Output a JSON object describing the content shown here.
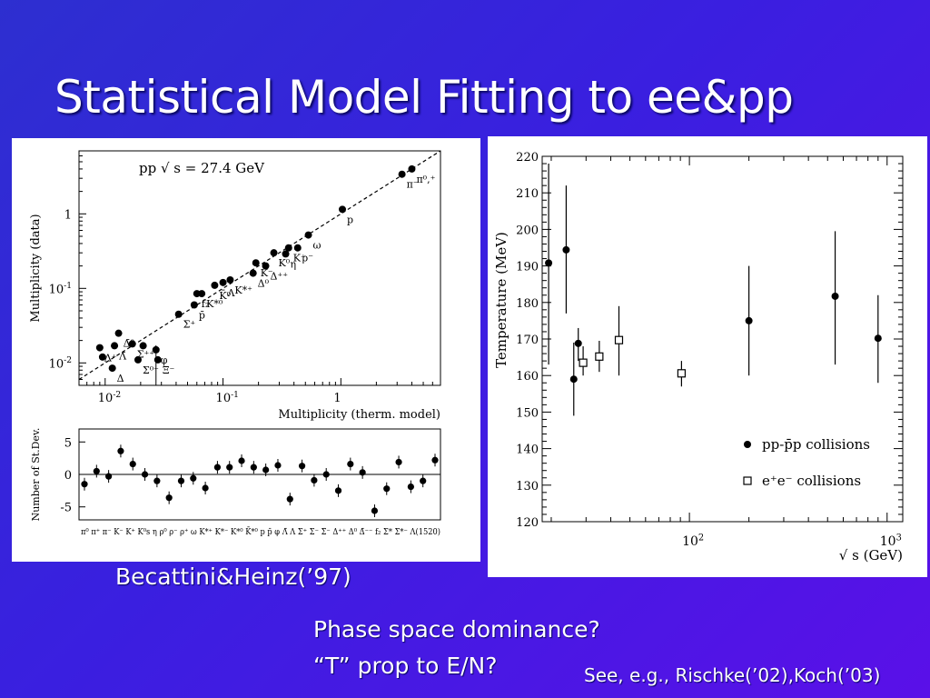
{
  "slide": {
    "title": "Statistical Model Fitting to ee&pp",
    "caption_left": "Becattini&Heinz(’97)",
    "bullets": [
      "Phase space dominance?",
      "“T” prop to E/N?"
    ],
    "footer": "See, e.g., Rischke(’02),Koch(’03)"
  },
  "chart_data": [
    {
      "type": "scatter",
      "title": "pp  √ s = 27.4 GeV",
      "xlabel": "Multiplicity (therm. model)",
      "ylabel": "Multiplicity (data)",
      "xscale": "log",
      "yscale": "log",
      "xlim": [
        0.006,
        7
      ],
      "ylim": [
        0.005,
        7
      ],
      "xticks": [
        {
          "v": 0.01,
          "label": "10",
          "exp": "-2"
        },
        {
          "v": 0.1,
          "label": "10",
          "exp": "-1"
        },
        {
          "v": 1,
          "label": "1",
          "exp": ""
        }
      ],
      "yticks": [
        {
          "v": 0.01,
          "label": "10",
          "exp": "-2"
        },
        {
          "v": 0.1,
          "label": "10",
          "exp": "-1"
        },
        {
          "v": 1,
          "label": "1",
          "exp": ""
        }
      ],
      "diagonal": "y = x (dashed)",
      "points": [
        {
          "x": 0.009,
          "y": 0.016,
          "label": "Λ⁺"
        },
        {
          "x": 0.0095,
          "y": 0.012,
          "label": ""
        },
        {
          "x": 0.0115,
          "y": 0.0085,
          "label": "Δ"
        },
        {
          "x": 0.012,
          "y": 0.017,
          "label": "Λ̄"
        },
        {
          "x": 0.013,
          "y": 0.025,
          "label": "Δ̄⁰"
        },
        {
          "x": 0.017,
          "y": 0.018,
          "label": "Σ⁺⁺"
        },
        {
          "x": 0.019,
          "y": 0.011,
          "label": "Σ⁰⁻"
        },
        {
          "x": 0.021,
          "y": 0.017,
          "label": ""
        },
        {
          "x": 0.027,
          "y": 0.015,
          "label": "φ"
        },
        {
          "x": 0.028,
          "y": 0.011,
          "label": "Ξ⁻"
        },
        {
          "x": 0.042,
          "y": 0.045,
          "label": "Σ⁺"
        },
        {
          "x": 0.057,
          "y": 0.06,
          "label": "p̄"
        },
        {
          "x": 0.06,
          "y": 0.085,
          "label": "f₂"
        },
        {
          "x": 0.066,
          "y": 0.085,
          "label": "K*⁰"
        },
        {
          "x": 0.085,
          "y": 0.11,
          "label": "K̄⁰"
        },
        {
          "x": 0.1,
          "y": 0.12,
          "label": "Λ"
        },
        {
          "x": 0.115,
          "y": 0.13,
          "label": "K*⁺"
        },
        {
          "x": 0.18,
          "y": 0.16,
          "label": "Δ⁰"
        },
        {
          "x": 0.19,
          "y": 0.22,
          "label": "K⁻"
        },
        {
          "x": 0.23,
          "y": 0.2,
          "label": "Δ⁺⁺"
        },
        {
          "x": 0.27,
          "y": 0.3,
          "label": "K⁰"
        },
        {
          "x": 0.34,
          "y": 0.29,
          "label": "η"
        },
        {
          "x": 0.36,
          "y": 0.35,
          "label": "K⁺"
        },
        {
          "x": 0.43,
          "y": 0.35,
          "label": "ρ⁻"
        },
        {
          "x": 0.53,
          "y": 0.52,
          "label": "ω"
        },
        {
          "x": 1.03,
          "y": 1.15,
          "label": "p"
        },
        {
          "x": 3.3,
          "y": 3.4,
          "label": "π⁻"
        },
        {
          "x": 4.0,
          "y": 4.0,
          "label": "π⁰,⁺"
        }
      ],
      "labels_text": {
        "p": "p",
        "pi_minus": "π",
        "pi_minus_sup": "-",
        "pi0": "π",
        "pi0_sup": "0,+",
        "rho_plus": "ρ",
        "rho_plus_sup": "+",
        "rho0": "ρ",
        "rho0_sup": "0",
        "omega": "ω",
        "K_plus": "K",
        "K_plus_sup": "+",
        "K0": "K",
        "K0_sup": "0",
        "K_minus": "K",
        "K_minus_sup": "-",
        "Lambda": "Λ",
        "eta": "η"
      }
    },
    {
      "type": "scatter",
      "ylabel": "Number of St.Dev.",
      "ylim": [
        -7,
        7
      ],
      "yticks": [
        {
          "v": 5,
          "label": "5"
        },
        {
          "v": 0,
          "label": "0"
        },
        {
          "v": -5,
          "label": "-5"
        }
      ],
      "categories_text": "π⁰ π⁺ π⁻ K⁻ K⁺ K⁰s η ρ⁰ ρ⁻ ρ⁺ ω K*⁺ K*⁻ K*⁰ K̄*⁰ p p̄ φ Λ̄ Λ Σ⁺ Σ⁻ Σ̄⁻ Δ⁺⁺ Δ⁰ Δ̄⁻⁻ f₂ Σ* Σ*⁻ Λ(1520)",
      "values": [
        -1.5,
        0.5,
        -0.3,
        3.6,
        1.6,
        0.0,
        -1.0,
        -3.6,
        -1.0,
        -0.6,
        -2.1,
        1.1,
        1.1,
        2.1,
        1.1,
        0.7,
        1.4,
        -3.8,
        1.3,
        -0.9,
        0.0,
        -2.5,
        1.6,
        0.3,
        -5.6,
        -2.2,
        1.9,
        -1.9,
        -1.0,
        2.2
      ]
    },
    {
      "type": "scatter",
      "xlabel": "√ s (GeV)",
      "ylabel": "Temperature (MeV)",
      "xscale": "log",
      "xlim": [
        18,
        1200
      ],
      "ylim": [
        120,
        220
      ],
      "yticks": [
        120,
        130,
        140,
        150,
        160,
        170,
        180,
        190,
        200,
        210,
        220
      ],
      "xticks": [
        {
          "v": 100,
          "label": "10",
          "exp": "2"
        },
        {
          "v": 1000,
          "label": "10",
          "exp": "3"
        }
      ],
      "series": [
        {
          "name": "pp-p̄p collisions",
          "marker": "filled-circle",
          "points": [
            {
              "x": 19.4,
              "y": 190.8,
              "lo": 163.0,
              "hi": 218.0
            },
            {
              "x": 23.8,
              "y": 194.4,
              "lo": 177.0,
              "hi": 212.0
            },
            {
              "x": 26.0,
              "y": 159.0,
              "lo": 149.0,
              "hi": 169.0
            },
            {
              "x": 27.4,
              "y": 168.8,
              "lo": 164.0,
              "hi": 173.0
            },
            {
              "x": 200,
              "y": 175.0,
              "lo": 160.0,
              "hi": 190.0
            },
            {
              "x": 546,
              "y": 181.7,
              "lo": 163.0,
              "hi": 199.5
            },
            {
              "x": 900,
              "y": 170.2,
              "lo": 158.0,
              "hi": 182.0
            }
          ]
        },
        {
          "name": "e⁺e⁻ collisions",
          "marker": "open-square",
          "points": [
            {
              "x": 29,
              "y": 163.5,
              "lo": 160.0,
              "hi": 168.0
            },
            {
              "x": 35,
              "y": 165.2,
              "lo": 161.0,
              "hi": 169.5
            },
            {
              "x": 44,
              "y": 169.7,
              "lo": 160.0,
              "hi": 179.0
            },
            {
              "x": 91.2,
              "y": 160.6,
              "lo": 157.0,
              "hi": 164.0
            }
          ]
        }
      ],
      "legend": [
        "pp-p̄p collisions",
        "e⁺e⁻ collisions"
      ],
      "legend_position": "bottom-right"
    }
  ]
}
